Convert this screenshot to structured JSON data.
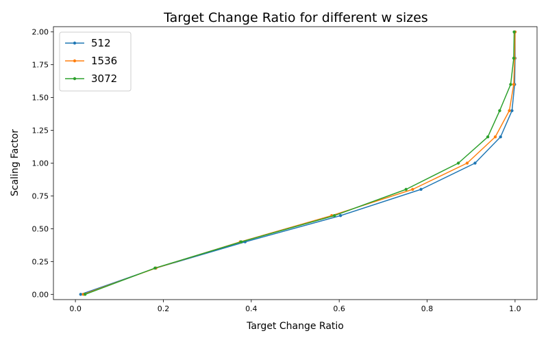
{
  "chart_data": {
    "type": "line",
    "title": "Target Change Ratio for different w sizes",
    "xlabel": "Target Change Ratio",
    "ylabel": "Scaling Factor",
    "xlim": [
      -0.05,
      1.05
    ],
    "ylim": [
      -0.04,
      2.04
    ],
    "xticks": [
      0.0,
      0.2,
      0.4,
      0.6,
      0.8,
      1.0
    ],
    "xtick_labels": [
      "0.0",
      "0.2",
      "0.4",
      "0.6",
      "0.8",
      "1.0"
    ],
    "yticks": [
      0.0,
      0.25,
      0.5,
      0.75,
      1.0,
      1.25,
      1.5,
      1.75,
      2.0
    ],
    "ytick_labels": [
      "0.00",
      "0.25",
      "0.50",
      "0.75",
      "1.00",
      "1.25",
      "1.50",
      "1.75",
      "2.00"
    ],
    "grid": false,
    "legend_position": "top-left",
    "series": [
      {
        "name": "512",
        "color": "#1f77b4",
        "x": [
          0.012,
          0.183,
          0.386,
          0.603,
          0.786,
          0.909,
          0.967,
          0.993,
          0.999,
          1.0,
          1.0
        ],
        "y": [
          0.0,
          0.2,
          0.4,
          0.6,
          0.8,
          1.0,
          1.2,
          1.4,
          1.6,
          1.8,
          2.0
        ]
      },
      {
        "name": "1536",
        "color": "#ff7f0e",
        "x": [
          0.018,
          0.183,
          0.375,
          0.583,
          0.767,
          0.891,
          0.955,
          0.987,
          0.997,
          0.999,
          1.0
        ],
        "y": [
          0.0,
          0.2,
          0.4,
          0.6,
          0.8,
          1.0,
          1.2,
          1.4,
          1.6,
          1.8,
          2.0
        ]
      },
      {
        "name": "3072",
        "color": "#2ca02c",
        "x": [
          0.022,
          0.181,
          0.377,
          0.589,
          0.752,
          0.871,
          0.938,
          0.965,
          0.99,
          0.997,
          0.998
        ],
        "y": [
          0.0,
          0.2,
          0.4,
          0.6,
          0.8,
          1.0,
          1.2,
          1.4,
          1.6,
          1.8,
          2.0
        ]
      }
    ]
  }
}
